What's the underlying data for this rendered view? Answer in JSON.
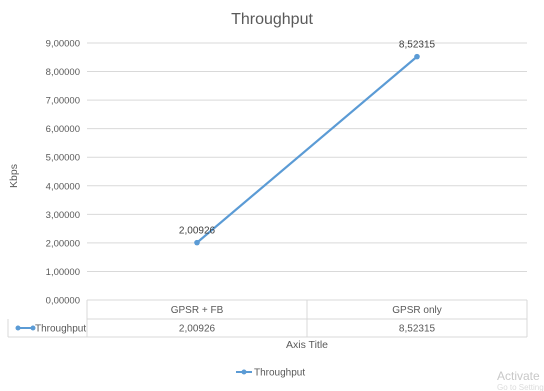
{
  "chart_data": {
    "type": "line",
    "title": "Throughput",
    "xlabel": "Axis Title",
    "ylabel": "Kbps",
    "categories": [
      "GPSR + FB",
      "GPSR only"
    ],
    "series": [
      {
        "name": "Throughput",
        "values": [
          2.00926,
          8.52315
        ],
        "labels": [
          "2,00926",
          "8,52315"
        ]
      }
    ],
    "ylim": [
      0,
      9
    ],
    "yticks": [
      "0,00000",
      "1,00000",
      "2,00000",
      "3,00000",
      "4,00000",
      "5,00000",
      "6,00000",
      "7,00000",
      "8,00000",
      "9,00000"
    ],
    "grid": true,
    "legend": "bottom",
    "data_table": true,
    "series_color": "#5b9bd5"
  },
  "watermark": {
    "main": "Activate",
    "sub": "Go to Settings"
  }
}
